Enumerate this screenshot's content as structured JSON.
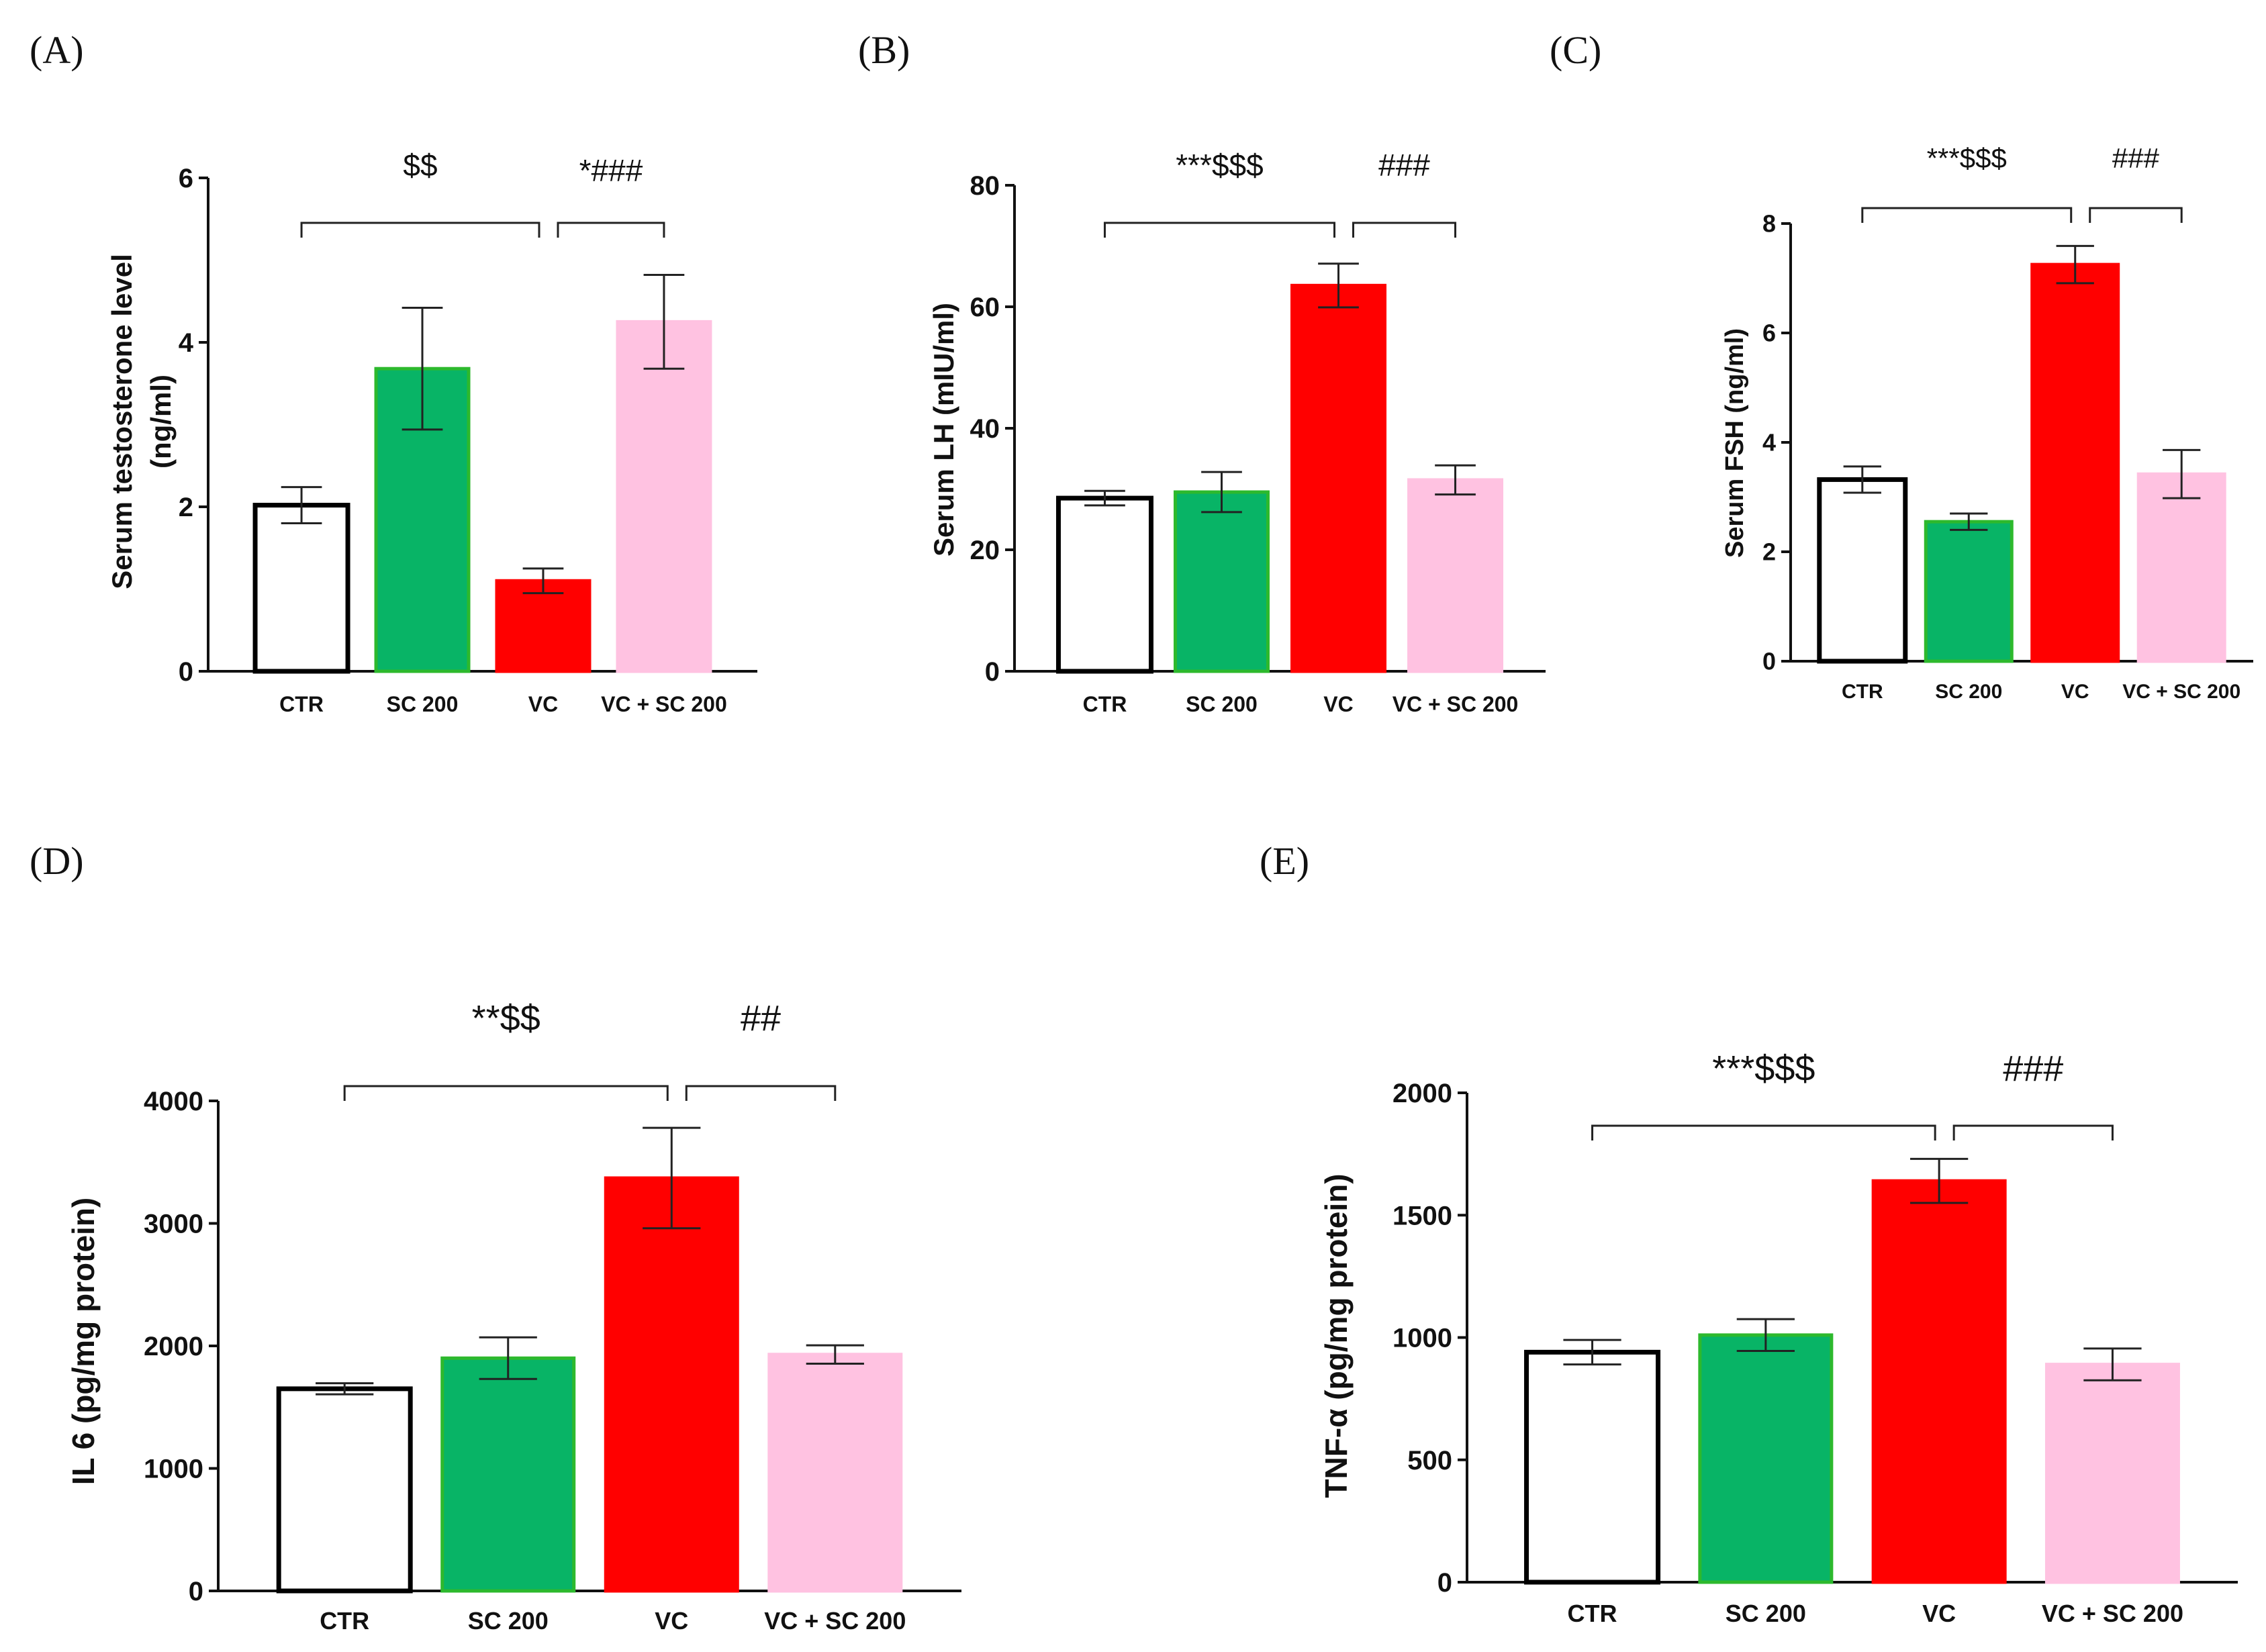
{
  "chart_data": [
    {
      "panel": "(A)",
      "type": "bar",
      "ylabel": "Serum testosterone level",
      "ylabel2": "(ng/ml)",
      "categories": [
        "CTR",
        "SC 200",
        "VC",
        "VC + SC 200"
      ],
      "values": [
        2.02,
        3.68,
        1.1,
        4.25
      ],
      "errors": [
        0.22,
        0.74,
        0.15,
        0.57
      ],
      "colors": [
        "#ffffff",
        "#08b466",
        "#ff0000",
        "#ffc2e1"
      ],
      "edge_colors": [
        "#000000",
        "#2db92d",
        "#ff0000",
        "#ffc2e1"
      ],
      "ylim": [
        0,
        6
      ],
      "yticks": [
        "0",
        "2",
        "4",
        "6"
      ],
      "significance": [
        {
          "from": 0,
          "to": 2,
          "label": "$$"
        },
        {
          "from": 2,
          "to": 3,
          "label": "*###"
        }
      ]
    },
    {
      "panel": "(B)",
      "type": "bar",
      "ylabel": "Serum LH  (mIU/ml)",
      "categories": [
        "CTR",
        "SC 200",
        "VC",
        "VC + SC 200"
      ],
      "values": [
        28.5,
        29.5,
        63.5,
        31.5
      ],
      "errors": [
        1.2,
        3.3,
        3.6,
        2.4
      ],
      "colors": [
        "#ffffff",
        "#08b466",
        "#ff0000",
        "#ffc2e1"
      ],
      "edge_colors": [
        "#000000",
        "#2db92d",
        "#ff0000",
        "#ffc2e1"
      ],
      "ylim": [
        0,
        80
      ],
      "yticks": [
        "0",
        "20",
        "40",
        "60",
        "80"
      ],
      "significance": [
        {
          "from": 0,
          "to": 2,
          "label": "***$$$"
        },
        {
          "from": 2,
          "to": 3,
          "label": "###"
        }
      ]
    },
    {
      "panel": "(C)",
      "type": "bar",
      "ylabel": "Serum FSH  (ng/ml)",
      "categories": [
        "CTR",
        "SC 200",
        "VC",
        "VC + SC 200"
      ],
      "values": [
        3.32,
        2.55,
        7.25,
        3.42
      ],
      "errors": [
        0.24,
        0.15,
        0.34,
        0.44
      ],
      "colors": [
        "#ffffff",
        "#08b466",
        "#ff0000",
        "#ffc2e1"
      ],
      "edge_colors": [
        "#000000",
        "#2db92d",
        "#ff0000",
        "#ffc2e1"
      ],
      "ylim": [
        0,
        8
      ],
      "yticks": [
        "0",
        "2",
        "4",
        "6",
        "8"
      ],
      "significance": [
        {
          "from": 0,
          "to": 2,
          "label": "***$$$"
        },
        {
          "from": 2,
          "to": 3,
          "label": "###"
        }
      ]
    },
    {
      "panel": "(D)",
      "type": "bar",
      "ylabel": "IL 6 (pg/mg protein)",
      "categories": [
        "CTR",
        "SC 200",
        "VC",
        "VC + SC 200"
      ],
      "values": [
        1650,
        1900,
        3370,
        1930
      ],
      "errors": [
        45,
        170,
        410,
        75
      ],
      "colors": [
        "#ffffff",
        "#08b466",
        "#ff0000",
        "#ffc2e1"
      ],
      "edge_colors": [
        "#000000",
        "#2db92d",
        "#ff0000",
        "#ffc2e1"
      ],
      "ylim": [
        0,
        4000
      ],
      "yticks": [
        "0",
        "1000",
        "2000",
        "3000",
        "4000"
      ],
      "significance": [
        {
          "from": 0,
          "to": 2,
          "label": "**$$"
        },
        {
          "from": 2,
          "to": 3,
          "label": "##"
        }
      ]
    },
    {
      "panel": "(E)",
      "type": "bar",
      "ylabel": "TNF-α  (pg/mg protein)",
      "categories": [
        "CTR",
        "SC 200",
        "VC",
        "VC + SC 200"
      ],
      "values": [
        940,
        1010,
        1640,
        890
      ],
      "errors": [
        50,
        65,
        90,
        65
      ],
      "colors": [
        "#ffffff",
        "#08b466",
        "#ff0000",
        "#ffc2e1"
      ],
      "edge_colors": [
        "#000000",
        "#2db92d",
        "#ff0000",
        "#ffc2e1"
      ],
      "ylim": [
        0,
        2000
      ],
      "yticks": [
        "0",
        "500",
        "1000",
        "1500",
        "2000"
      ],
      "significance": [
        {
          "from": 0,
          "to": 2,
          "label": "***$$$"
        },
        {
          "from": 2,
          "to": 3,
          "label": "###"
        }
      ]
    }
  ]
}
